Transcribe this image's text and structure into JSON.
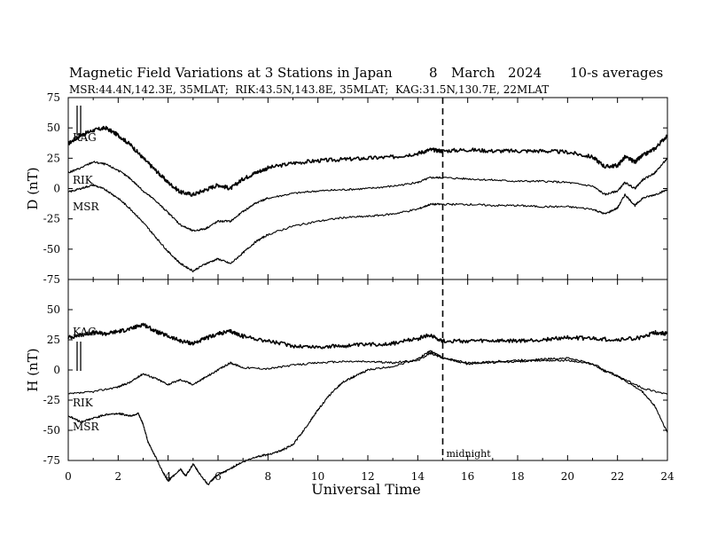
{
  "title": {
    "main": "Magnetic Field Variations at 3 Stations in Japan",
    "day": "8",
    "month": "March",
    "year": "2024",
    "averaging": "10-s averages",
    "stations_line": "MSR:44.4N,142.3E, 35MLAT;  RIK:43.5N,143.8E, 35MLAT;  KAG:31.5N,130.7E, 22MLAT"
  },
  "chart_data": [
    {
      "type": "line",
      "panel": "top",
      "ylabel": "D (nT)",
      "ylim": [
        -75,
        75
      ],
      "yticks": [
        "75",
        "50",
        "25",
        "0",
        "-25",
        "-50",
        "-75"
      ],
      "xlim": [
        0,
        24
      ],
      "series": [
        {
          "name": "KAG",
          "x": [
            0,
            0.5,
            1,
            1.5,
            2,
            2.5,
            3,
            3.5,
            4,
            4.5,
            5,
            5.5,
            6,
            6.5,
            7,
            7.5,
            8,
            9,
            10,
            11,
            12,
            13,
            14,
            14.5,
            15,
            16,
            17,
            18,
            19,
            20,
            21,
            21.5,
            22,
            22.3,
            22.7,
            23,
            23.5,
            24
          ],
          "y": [
            37,
            44,
            48,
            50,
            44,
            36,
            25,
            15,
            5,
            -3,
            -5,
            -1,
            3,
            0,
            8,
            13,
            17,
            21,
            23,
            24,
            25,
            26,
            29,
            32,
            31,
            32,
            31,
            31,
            31,
            30,
            26,
            18,
            19,
            26,
            22,
            27,
            33,
            44
          ]
        },
        {
          "name": "RIK",
          "x": [
            0,
            0.5,
            1,
            1.5,
            2,
            2.5,
            3,
            3.5,
            4,
            4.5,
            5,
            5.5,
            6,
            6.5,
            7,
            7.5,
            8,
            9,
            10,
            11,
            12,
            13,
            14,
            14.5,
            15,
            16,
            17,
            18,
            19,
            20,
            21,
            21.5,
            22,
            22.3,
            22.7,
            23,
            23.5,
            24
          ],
          "y": [
            13,
            17,
            22,
            20,
            15,
            8,
            -2,
            -10,
            -20,
            -30,
            -35,
            -33,
            -27,
            -27,
            -19,
            -12,
            -8,
            -4,
            -2,
            -1,
            0,
            2,
            5,
            9,
            9,
            8,
            7,
            6,
            6,
            5,
            2,
            -5,
            -2,
            5,
            0,
            7,
            13,
            25
          ]
        },
        {
          "name": "MSR",
          "x": [
            0,
            0.5,
            1,
            1.5,
            2,
            2.5,
            3,
            3.5,
            4,
            4.5,
            5,
            5.5,
            6,
            6.5,
            7,
            7.5,
            8,
            9,
            10,
            11,
            12,
            13,
            14,
            14.5,
            15,
            16,
            17,
            18,
            19,
            20,
            21,
            21.5,
            22,
            22.3,
            22.7,
            23,
            23.5,
            24
          ],
          "y": [
            -3,
            0,
            3,
            -1,
            -8,
            -17,
            -28,
            -40,
            -52,
            -62,
            -68,
            -62,
            -58,
            -62,
            -53,
            -44,
            -38,
            -31,
            -27,
            -24,
            -23,
            -21,
            -17,
            -13,
            -13,
            -13,
            -14,
            -14,
            -15,
            -15,
            -17,
            -21,
            -16,
            -5,
            -14,
            -8,
            -5,
            -1
          ]
        }
      ]
    },
    {
      "type": "line",
      "panel": "bottom",
      "ylabel": "H (nT)",
      "ylim": [
        -75,
        75
      ],
      "yticks": [
        "75",
        "50",
        "25",
        "0",
        "-25",
        "-50",
        "-75"
      ],
      "xlim": [
        0,
        24
      ],
      "xlabel": "Universal Time",
      "xticks": [
        "0",
        "2",
        "4",
        "6",
        "8",
        "10",
        "12",
        "14",
        "16",
        "18",
        "20",
        "22",
        "24"
      ],
      "series": [
        {
          "name": "KAG",
          "x": [
            0,
            0.5,
            1,
            1.5,
            2,
            2.5,
            3,
            3.5,
            4,
            4.5,
            5,
            5.5,
            6,
            6.5,
            7,
            8,
            9,
            10,
            11,
            12,
            13,
            14,
            14.5,
            15,
            16,
            17,
            18,
            19,
            20,
            21,
            22,
            23,
            23.5,
            24
          ],
          "y": [
            27,
            29,
            31,
            30,
            32,
            34,
            38,
            32,
            28,
            24,
            22,
            26,
            30,
            32,
            28,
            24,
            20,
            19,
            20,
            21,
            22,
            26,
            29,
            24,
            24,
            24,
            24,
            25,
            27,
            26,
            25,
            27,
            31,
            30
          ]
        },
        {
          "name": "RIK",
          "x": [
            0,
            1,
            2,
            2.5,
            3,
            3.5,
            4,
            4.5,
            5,
            5.5,
            6,
            6.5,
            7,
            8,
            9,
            10,
            11,
            12,
            13,
            14,
            14.5,
            15,
            16,
            17,
            18,
            19,
            20,
            21,
            21.5,
            22,
            23,
            24
          ],
          "y": [
            -20,
            -18,
            -14,
            -10,
            -3,
            -7,
            -12,
            -8,
            -12,
            -6,
            0,
            6,
            2,
            1,
            4,
            6,
            7,
            7,
            6,
            8,
            14,
            10,
            6,
            6,
            7,
            8,
            8,
            5,
            -1,
            -5,
            -15,
            -20
          ]
        },
        {
          "name": "MSR",
          "x": [
            0,
            0.5,
            1,
            1.5,
            2,
            2.5,
            2.8,
            3,
            3.2,
            3.5,
            3.8,
            4,
            4.2,
            4.5,
            4.7,
            5,
            5.3,
            5.6,
            5.9,
            6.3,
            6.8,
            7.5,
            8,
            8.5,
            9,
            9.5,
            10,
            10.5,
            11,
            11.5,
            12,
            13,
            14,
            14.5,
            15,
            16,
            17,
            18,
            19,
            20,
            21,
            22,
            23,
            23.5,
            24
          ],
          "y": [
            -38,
            -43,
            -40,
            -37,
            -36,
            -38,
            -36,
            -45,
            -60,
            -72,
            -85,
            -92,
            -88,
            -82,
            -88,
            -78,
            -87,
            -95,
            -88,
            -84,
            -78,
            -72,
            -70,
            -67,
            -62,
            -48,
            -33,
            -20,
            -10,
            -5,
            0,
            3,
            9,
            16,
            10,
            5,
            7,
            8,
            9,
            10,
            5,
            -5,
            -18,
            -30,
            -52
          ]
        }
      ],
      "annotations": [
        {
          "text": "midnight",
          "x": 15
        }
      ]
    }
  ],
  "markers": {
    "midnight_line_ut": 15
  }
}
